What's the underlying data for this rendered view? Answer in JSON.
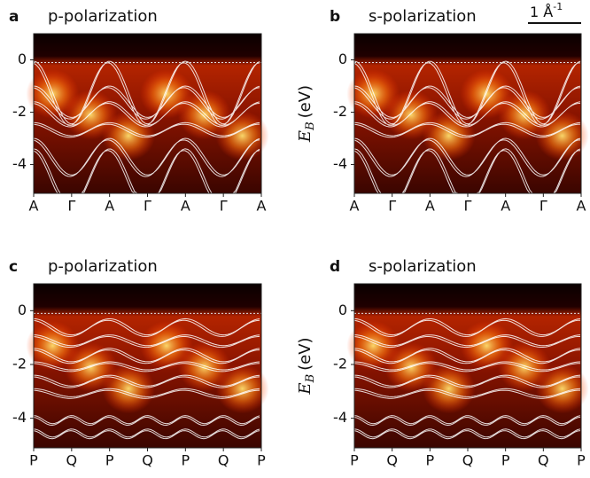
{
  "chart_data": [
    {
      "type": "heatmap",
      "label": "a",
      "title": "p-polarization",
      "categories": [
        "A",
        "Γ",
        "A",
        "Γ",
        "A",
        "Γ",
        "A"
      ],
      "ylim": [
        -5.1,
        1
      ],
      "yticks": [
        0,
        -2,
        -4
      ]
    },
    {
      "type": "heatmap",
      "label": "b",
      "title": "s-polarization",
      "ylabel": {
        "symbol": "E",
        "subscript": "B",
        "unit": "(eV)"
      },
      "annotation": {
        "text": "1 Å",
        "superscript": "-1"
      },
      "categories": [
        "A",
        "Γ",
        "A",
        "Γ",
        "A",
        "Γ",
        "A"
      ],
      "ylim": [
        -5.1,
        1
      ],
      "yticks": [
        0,
        -2,
        -4
      ]
    },
    {
      "type": "heatmap",
      "label": "c",
      "title": "p-polarization",
      "categories": [
        "P",
        "Q",
        "P",
        "Q",
        "P",
        "Q",
        "P"
      ],
      "ylim": [
        -5.1,
        1
      ],
      "yticks": [
        0,
        -2,
        -4
      ]
    },
    {
      "type": "heatmap",
      "label": "d",
      "title": "s-polarization",
      "ylabel": {
        "symbol": "E",
        "subscript": "B",
        "unit": "(eV)"
      },
      "categories": [
        "P",
        "Q",
        "P",
        "Q",
        "P",
        "Q",
        "P"
      ],
      "ylim": [
        -5.1,
        1
      ],
      "yticks": [
        0,
        -2,
        -4
      ]
    }
  ]
}
